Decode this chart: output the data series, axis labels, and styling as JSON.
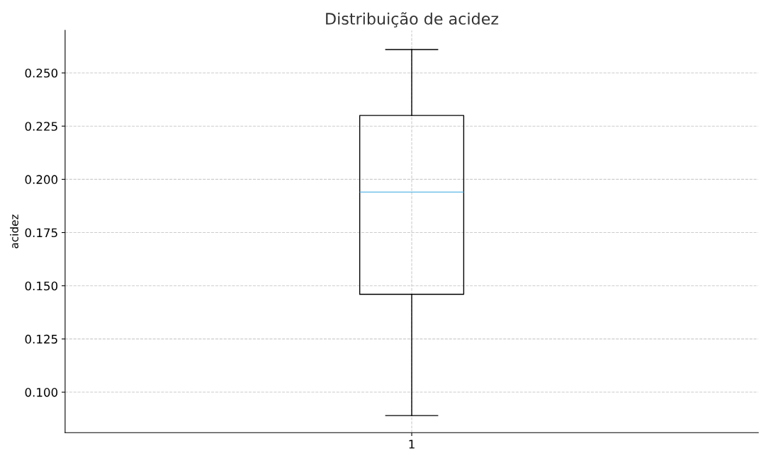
{
  "chart_data": {
    "type": "box",
    "title": "Distribuição de acidez",
    "ylabel": "acidez",
    "categories": [
      "1"
    ],
    "series": [
      {
        "color": "#000000",
        "boxes": [
          {
            "low": 0.089,
            "q1": 0.146,
            "median": 0.194,
            "q3": 0.23,
            "high": 0.261
          }
        ]
      }
    ],
    "ylim": [
      0.081,
      0.27
    ],
    "yticks": [
      {
        "value": 0.1,
        "label": "0.100"
      },
      0.125,
      {
        "value": 0.15,
        "label": "0.150"
      },
      0.175,
      {
        "value": 0.2,
        "label": "0.200"
      },
      0.225,
      {
        "value": 0.25,
        "label": "0.250"
      }
    ],
    "grid": true
  }
}
